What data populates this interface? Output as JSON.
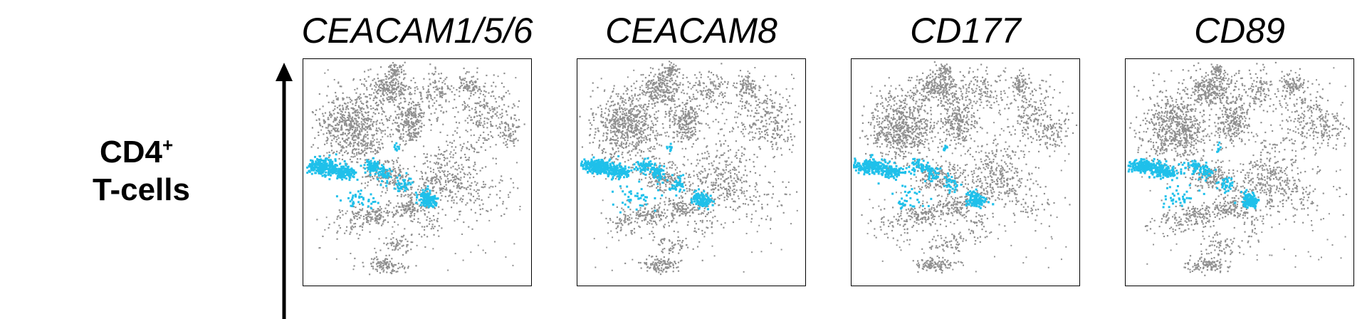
{
  "row_label": {
    "line1": "CD4",
    "sup": "+",
    "line2": "T-cells"
  },
  "colors": {
    "background_cells": "#8f8f8f",
    "highlighted_cells": "#1fc0ea",
    "frame": "#000000"
  },
  "chart_data": {
    "type": "scatter",
    "panels": [
      {
        "title": "CEACAM1/5/6"
      },
      {
        "title": "CEACAM8"
      },
      {
        "title": "CD177"
      },
      {
        "title": "CD89"
      }
    ],
    "grid": false,
    "legend": "none"
  }
}
